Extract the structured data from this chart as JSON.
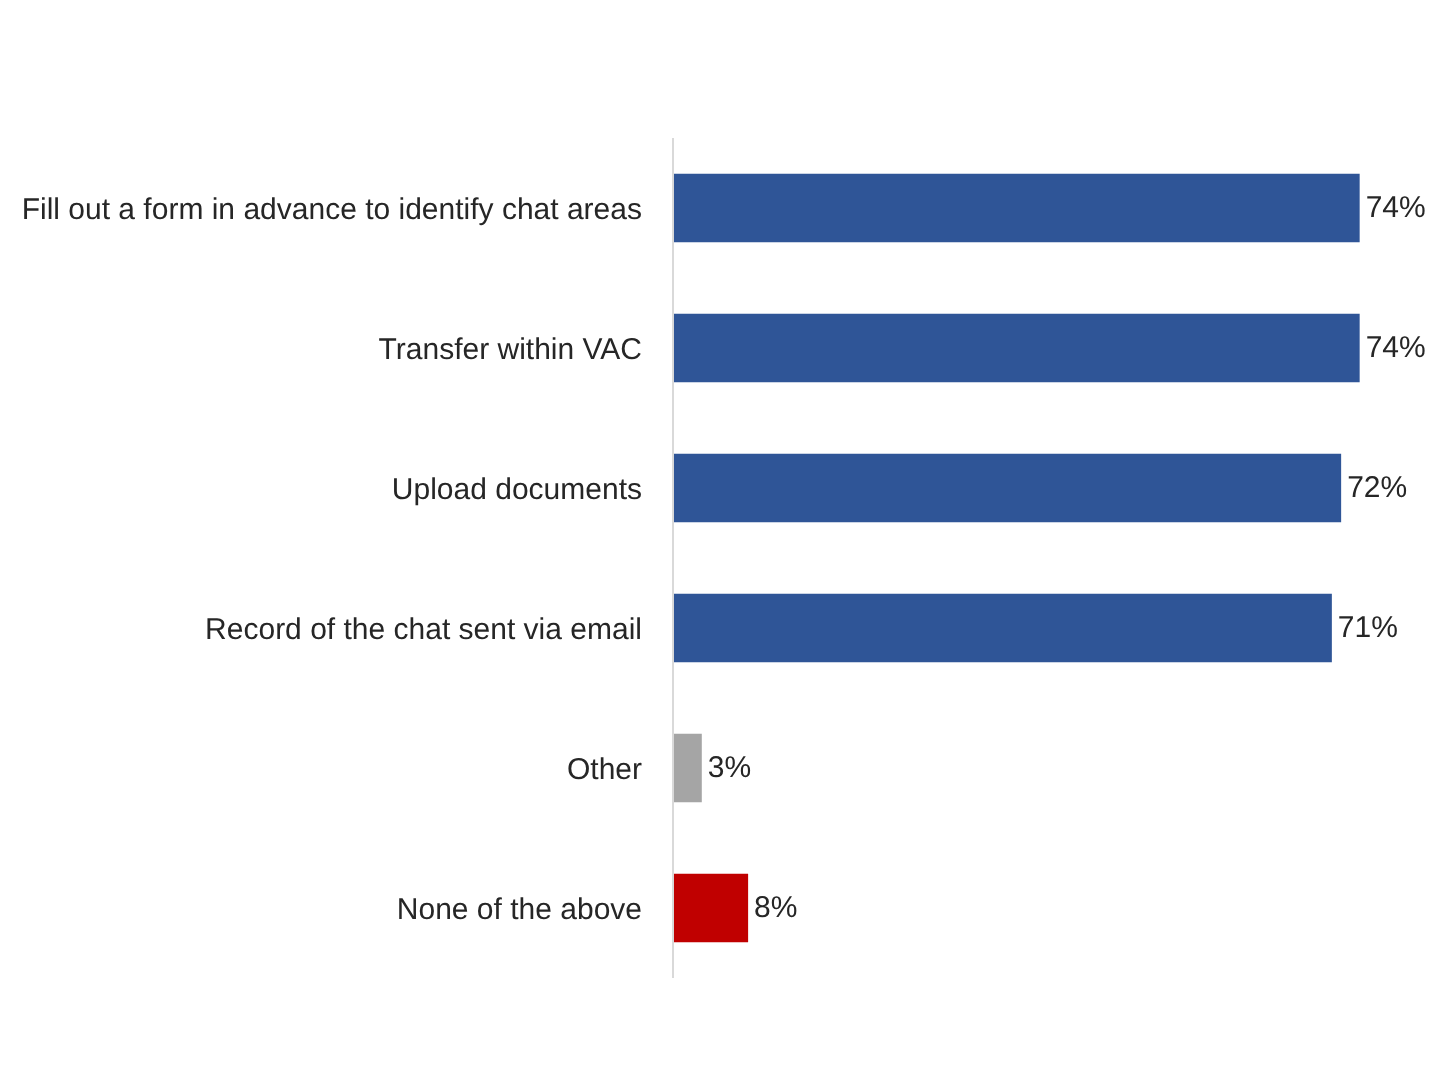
{
  "chart_data": {
    "type": "bar",
    "orientation": "horizontal",
    "categories": [
      "Fill out a form in advance to identify chat areas",
      "Transfer within VAC",
      "Upload documents",
      "Record of the chat sent via email",
      "Other",
      "None of the above"
    ],
    "values": [
      74,
      74,
      72,
      71,
      3,
      8
    ],
    "colors": [
      "#2f5597",
      "#2f5597",
      "#2f5597",
      "#2f5597",
      "#a5a5a5",
      "#c00000"
    ],
    "value_labels": [
      "74%",
      "74%",
      "72%",
      "71%",
      "3%",
      "8%"
    ]
  }
}
